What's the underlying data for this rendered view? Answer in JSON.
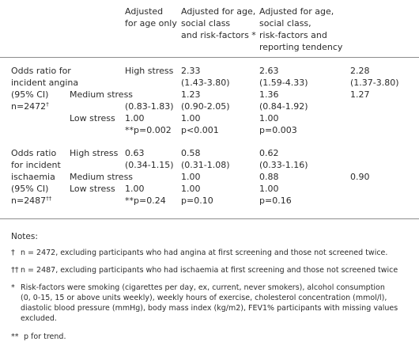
{
  "headers": {
    "col1": [
      "Adjusted",
      "for age only"
    ],
    "col2": [
      "Adjusted for age,",
      "social class",
      "and risk-factors *"
    ],
    "col3": [
      "Adjusted for age,",
      "social class,",
      "risk-factors and",
      "reporting tendency"
    ]
  },
  "angina": {
    "label": [
      "Odds ratio for",
      "incident angina",
      "(95% CI)",
      "n=2472"
    ],
    "label_mark": "†",
    "high": {
      "label": "High stress",
      "c1": "",
      "c2": [
        "2.33",
        "(1.43-3.80)"
      ],
      "c3": [
        "2.63",
        "(1.59-4.33)"
      ],
      "c4": [
        "2.28",
        "(1.37-3.80)"
      ]
    },
    "medium": {
      "label": "Medium stress",
      "c1": "(0.83-1.83)",
      "c2": [
        "1.23",
        "(0.90-2.05)"
      ],
      "c3": [
        "1.36",
        "(0.84-1.92)"
      ],
      "c4": "1.27"
    },
    "low": {
      "label": "Low stress",
      "c1": "1.00",
      "c2": "1.00",
      "c3": "1.00"
    },
    "trend": {
      "c1": "**p=0.002",
      "c2": "p<0.001",
      "c3": "p=0.003"
    }
  },
  "ischaemia": {
    "label": [
      "Odds ratio",
      "for incident",
      "ischaemia",
      "(95% CI)",
      "n=2487"
    ],
    "label_mark": "††",
    "high": {
      "label": "High stress",
      "c1": [
        "0.63",
        "(0.34-1.15)"
      ],
      "c2": [
        "0.58",
        "(0.31-1.08)"
      ],
      "c3": [
        "0.62",
        "(0.33-1.16)"
      ]
    },
    "medium": {
      "label": "Medium stress",
      "c2": "1.00",
      "c3": "0.88",
      "c4": "0.90"
    },
    "low": {
      "label": "Low stress",
      "c1": "1.00",
      "c2": "1.00",
      "c3": "1.00"
    },
    "trend": {
      "c1": "**p=0.24",
      "c2": "p=0.10",
      "c3": "p=0.16"
    }
  },
  "notes": {
    "title": "Notes:",
    "n1_mark": "†",
    "n1": "n = 2472, excluding participants who had angina at first screening and those not screened twice.",
    "n2_mark": "††",
    "n2": "n = 2487, excluding participants who had ischaemia at first screening and those not screened twice",
    "n3_mark": "*",
    "n3": [
      "Risk-factors were smoking (cigarettes per day, ex, current, never smokers), alcohol consumption",
      "(0, 0-15, 15 or above units weekly), weekly hours of exercise, cholesterol concentration (mmol/l),",
      "diastolic blood pressure (mmHg), body mass index (kg/m2), FEV1% participants with missing values",
      "excluded."
    ],
    "n4_mark": "**",
    "n4": "p for trend."
  }
}
